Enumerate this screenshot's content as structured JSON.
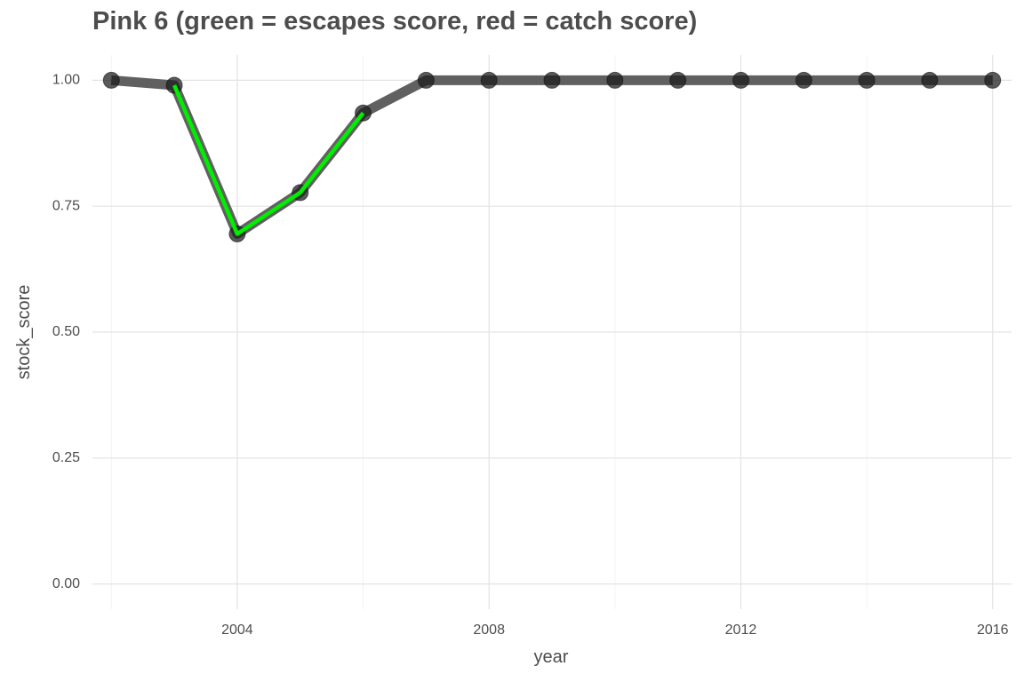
{
  "chart_data": {
    "type": "line",
    "title": "Pink 6 (green = escapes score, red = catch score)",
    "xlabel": "year",
    "ylabel": "stock_score",
    "xlim": [
      2001.7,
      2016.3
    ],
    "ylim": [
      -0.05,
      1.05
    ],
    "x_ticks": [
      2004,
      2008,
      2012,
      2016
    ],
    "y_ticks": [
      0,
      0.25,
      0.5,
      0.75,
      1
    ],
    "y_tick_labels": [
      "0.00",
      "0.25",
      "0.50",
      "0.75",
      "1.00"
    ],
    "grid": true,
    "series": [
      {
        "name": "stock_score",
        "color": "#606060",
        "point_color": "#1a1a1a",
        "x": [
          2002,
          2003,
          2004,
          2005,
          2006,
          2007,
          2008,
          2009,
          2010,
          2011,
          2012,
          2013,
          2014,
          2015,
          2016
        ],
        "values": [
          1.0,
          0.99,
          0.695,
          0.777,
          0.935,
          1.0,
          1.0,
          1.0,
          1.0,
          1.0,
          1.0,
          1.0,
          1.0,
          1.0,
          1.0
        ]
      },
      {
        "name": "escapes score",
        "color": "#00ee00",
        "x": [
          2003,
          2004,
          2005,
          2006
        ],
        "values": [
          0.99,
          0.695,
          0.777,
          0.935
        ]
      }
    ]
  }
}
